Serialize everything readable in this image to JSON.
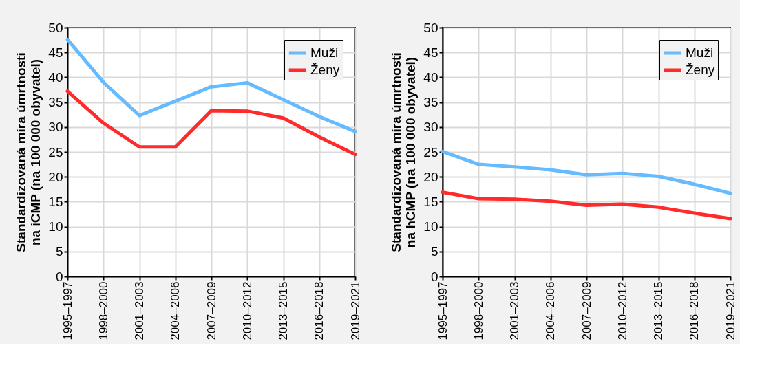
{
  "chart_data": [
    {
      "type": "line",
      "ylabel": "Standardizovaná míra úmrtnosti\nna iCMP (na 100 000 obyvatel)",
      "categories": [
        "1995–1997",
        "1998–2000",
        "2001–2003",
        "2004–2006",
        "2007–2009",
        "2010–2012",
        "2013–2015",
        "2016–2018",
        "2019–2021"
      ],
      "series": [
        {
          "name": "Muži",
          "color": "#66bbff",
          "values": [
            47.6,
            39.0,
            32.3,
            35.2,
            38.1,
            38.9,
            35.5,
            32.1,
            29.1
          ]
        },
        {
          "name": "Ženy",
          "color": "#ff2a2a",
          "values": [
            37.2,
            30.8,
            26.0,
            26.0,
            33.3,
            33.2,
            31.8,
            28.0,
            24.5
          ]
        }
      ],
      "ylim": [
        0,
        50
      ],
      "yticks": [
        0,
        5,
        10,
        15,
        20,
        25,
        30,
        35,
        40,
        45,
        50
      ],
      "grid": true,
      "legend": "top right",
      "marker": "none",
      "line_style": "solid"
    },
    {
      "type": "line",
      "ylabel": "Standardizovaná míra úmrtnosti\nna hCMP (na 100 000 obyvatel)",
      "categories": [
        "1995–1997",
        "1998–2000",
        "2001–2003",
        "2004–2006",
        "2007–2009",
        "2010–2012",
        "2013–2015",
        "2016–2018",
        "2019–2021"
      ],
      "series": [
        {
          "name": "Muži",
          "color": "#66bbff",
          "values": [
            25.1,
            22.5,
            22.0,
            21.4,
            20.4,
            20.7,
            20.1,
            18.5,
            16.7
          ]
        },
        {
          "name": "Ženy",
          "color": "#ff2a2a",
          "values": [
            16.9,
            15.6,
            15.5,
            15.1,
            14.3,
            14.5,
            13.9,
            12.7,
            11.6
          ]
        }
      ],
      "ylim": [
        0,
        50
      ],
      "yticks": [
        0,
        5,
        10,
        15,
        20,
        25,
        30,
        35,
        40,
        45,
        50
      ],
      "grid": true,
      "legend": "top right",
      "marker": "none",
      "line_style": "solid"
    }
  ]
}
